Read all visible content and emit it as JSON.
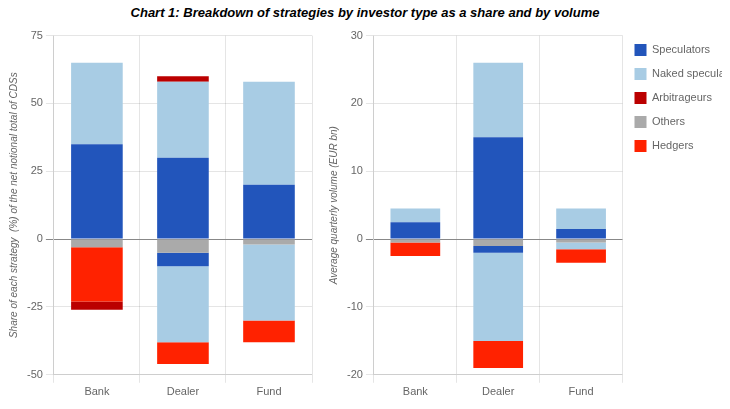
{
  "chart_data": [
    {
      "type": "bar",
      "title": "Chart 1: Breakdown of strategies by investor type as a share and by volume",
      "categories": [
        "Bank",
        "Dealer",
        "Fund"
      ],
      "ylabel": "Share of each strategy  (%) of the net notional total of CDSs",
      "ylim": [
        -50,
        75
      ],
      "yticks": [
        -50,
        -25,
        0,
        25,
        50,
        75
      ],
      "stacked": true,
      "grid": true,
      "series": [
        {
          "name": "Speculators",
          "color": "#2255bb",
          "values": [
            35,
            30,
            20
          ]
        },
        {
          "name": "Naked speculators",
          "color": "#a8cce4",
          "values": [
            30,
            28,
            38
          ]
        },
        {
          "name": "Arbitrageurs",
          "color": "#bb0000",
          "values": [
            0,
            2,
            0
          ]
        },
        {
          "name": "Others",
          "color": "#aaaaaa",
          "values": [
            -3,
            -5,
            -2
          ]
        },
        {
          "name": "Speculators",
          "color": "#2255bb",
          "values": [
            0,
            -5,
            0
          ]
        },
        {
          "name": "Naked speculators",
          "color": "#a8cce4",
          "values": [
            0,
            -28,
            -28
          ]
        },
        {
          "name": "Hedgers",
          "color": "#ff2200",
          "values": [
            -20,
            -8,
            -8
          ]
        },
        {
          "name": "Arbitrageurs",
          "color": "#bb0000",
          "values": [
            -3,
            0,
            0
          ]
        }
      ]
    },
    {
      "type": "bar",
      "categories": [
        "Bank",
        "Dealer",
        "Fund"
      ],
      "ylabel": "Average quarterly volume (EUR bn)",
      "ylim": [
        -20,
        30
      ],
      "yticks": [
        -20,
        -10,
        0,
        10,
        20,
        30
      ],
      "stacked": true,
      "grid": true,
      "legend": "right",
      "series": [
        {
          "name": "Speculators",
          "color": "#2255bb",
          "values": [
            2.5,
            15,
            1.5
          ]
        },
        {
          "name": "Naked speculators",
          "color": "#a8cce4",
          "values": [
            2,
            11,
            3
          ]
        },
        {
          "name": "Arbitrageurs",
          "color": "#bb0000",
          "values": [
            0,
            0,
            0
          ]
        },
        {
          "name": "Others",
          "color": "#aaaaaa",
          "values": [
            -0.5,
            -1,
            -0.5
          ]
        },
        {
          "name": "Speculators",
          "color": "#2255bb",
          "values": [
            0,
            -1,
            0
          ]
        },
        {
          "name": "Naked speculators",
          "color": "#a8cce4",
          "values": [
            0,
            -13,
            -1
          ]
        },
        {
          "name": "Hedgers",
          "color": "#ff2200",
          "values": [
            -2,
            -4,
            -2
          ]
        },
        {
          "name": "Arbitrageurs",
          "color": "#bb0000",
          "values": [
            0,
            0,
            0
          ]
        }
      ]
    }
  ]
}
